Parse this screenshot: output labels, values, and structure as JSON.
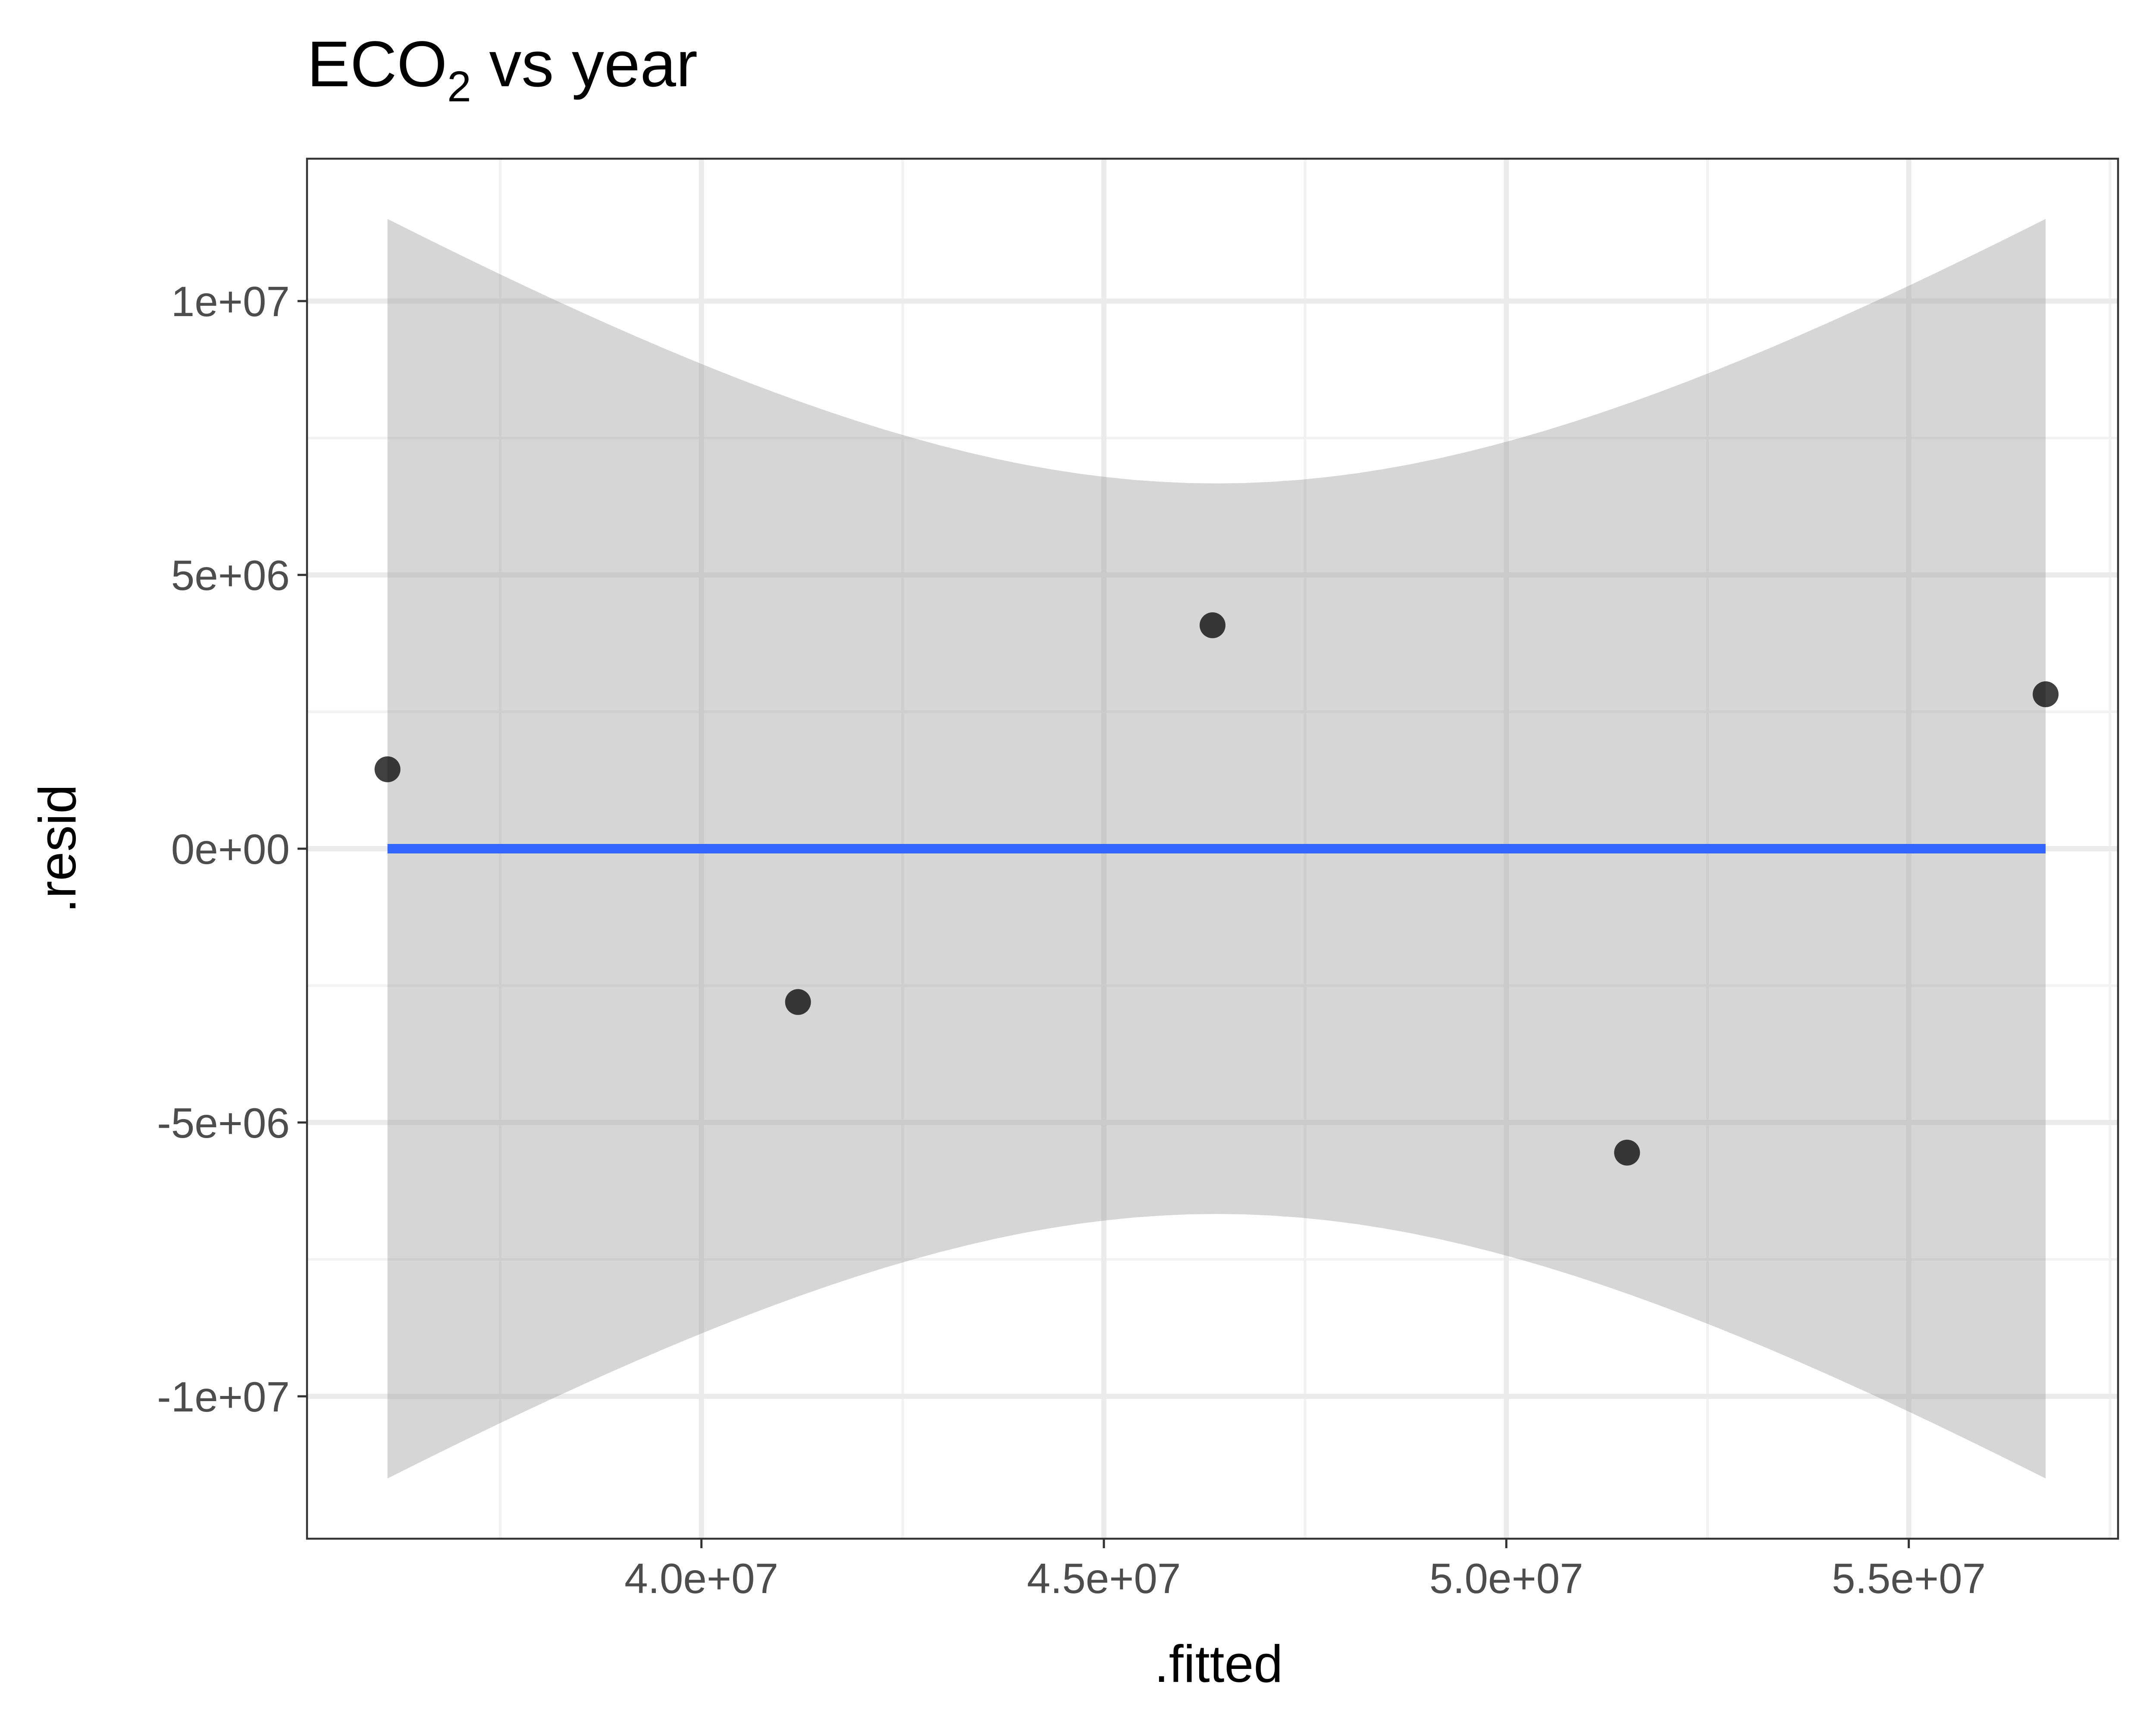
{
  "chart_data": {
    "type": "scatter",
    "title": "ECO",
    "title_subscript": "2",
    "title_suffix": " vs year",
    "xlabel": ".fitted",
    "ylabel": ".resid",
    "xlim": [
      35100000,
      57600000
    ],
    "ylim": [
      -12600000,
      12600000
    ],
    "x_ticks": [
      {
        "value": 40000000,
        "label": "4.0e+07"
      },
      {
        "value": 45000000,
        "label": "4.5e+07"
      },
      {
        "value": 50000000,
        "label": "5.0e+07"
      },
      {
        "value": 55000000,
        "label": "5.5e+07"
      }
    ],
    "x_minor_ticks": [
      37500000,
      42500000,
      47500000,
      52500000,
      57500000
    ],
    "y_ticks": [
      {
        "value": 10000000,
        "label": "1e+07"
      },
      {
        "value": 5000000,
        "label": "5e+06"
      },
      {
        "value": 0,
        "label": "0e+00"
      },
      {
        "value": -5000000,
        "label": "-5e+06"
      },
      {
        "value": -10000000,
        "label": "-1e+07"
      }
    ],
    "y_minor_ticks": [
      7500000,
      2500000,
      -2500000,
      -7500000
    ],
    "points": [
      {
        "x": 36100000,
        "y": 1450000
      },
      {
        "x": 41200000,
        "y": -2800000
      },
      {
        "x": 46350000,
        "y": 4080000
      },
      {
        "x": 51500000,
        "y": -5550000
      },
      {
        "x": 56700000,
        "y": 2820000
      }
    ],
    "smooth_line": {
      "x": [
        36100000,
        56700000
      ],
      "y": [
        0,
        0
      ]
    },
    "confidence_band": {
      "x_min": 36100000,
      "x_center": 46400000,
      "x_max": 56700000,
      "half_width_at_edges": 11500000,
      "half_width_at_center": 6670000
    },
    "grid": true,
    "colors": {
      "background": "#ffffff",
      "panel_border": "#333333",
      "grid_major": "#ebebeb",
      "grid_minor": "#f2f2f2",
      "points": "#000000",
      "line": "#3366ff",
      "band": "#999999"
    }
  }
}
